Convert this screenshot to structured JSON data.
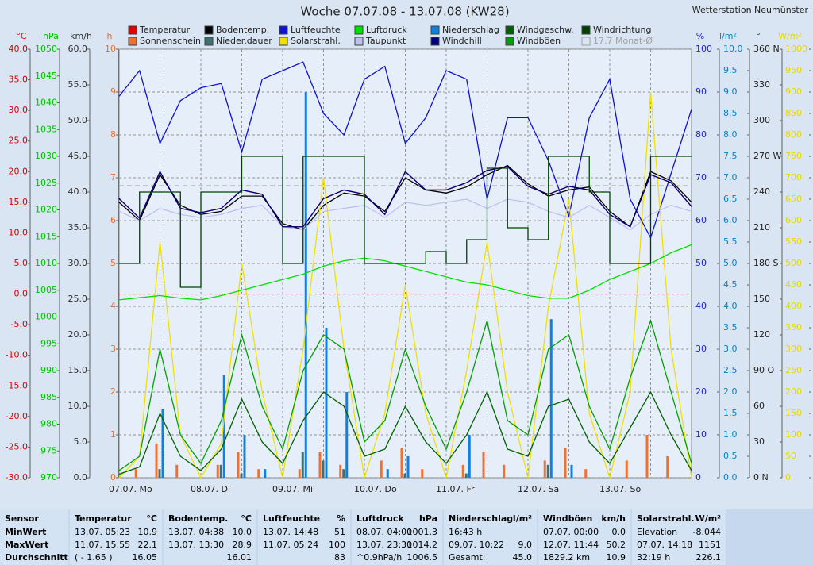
{
  "chart_data": {
    "type": "line",
    "title": "Woche 07.07.08 - 13.07.08 (KW28)",
    "station": "Wetterstation Neumünster",
    "categories": [
      "07.07. Mo",
      null,
      null,
      null,
      "08.07. Di",
      null,
      null,
      null,
      "09.07. Mi",
      null,
      null,
      null,
      "10.07. Do",
      null,
      null,
      null,
      "11.07. Fr",
      null,
      null,
      null,
      "12.07. Sa",
      null,
      null,
      null,
      "13.07. So",
      null,
      null,
      null,
      null
    ],
    "grid": true,
    "axes": [
      {
        "label": "°C",
        "side": "left",
        "color": "#e00000",
        "lim": [
          -30,
          40
        ],
        "ticks": [
          {
            "value": -30,
            "label": "-30.0"
          },
          {
            "value": -25,
            "label": "-25.0"
          },
          {
            "value": -20,
            "label": "-20.0"
          },
          {
            "value": -15,
            "label": "-15.0"
          },
          {
            "value": -10,
            "label": "-10.0"
          },
          {
            "value": -5,
            "label": "-5.0"
          },
          {
            "value": 0,
            "label": "0.0"
          },
          {
            "value": 5,
            "label": "5.0"
          },
          {
            "value": 10,
            "label": "10.0"
          },
          {
            "value": 15,
            "label": "15.0"
          },
          {
            "value": 20,
            "label": "20.0"
          },
          {
            "value": 25,
            "label": "25.0"
          },
          {
            "value": 30,
            "label": "30.0"
          },
          {
            "value": 35,
            "label": "35.0"
          },
          {
            "value": 40,
            "label": "40.0"
          }
        ]
      },
      {
        "label": "hPa",
        "side": "left",
        "color": "#00c000",
        "lim": [
          970,
          1050
        ],
        "ticks": [
          970,
          975,
          980,
          985,
          990,
          995,
          1000,
          1005,
          1010,
          1015,
          1020,
          1025,
          1030,
          1035,
          1040,
          1045,
          1050
        ]
      },
      {
        "label": "km/h",
        "side": "left",
        "color": "#303030",
        "lim": [
          0,
          60
        ],
        "ticks": [
          {
            "value": 0,
            "label": "0.0"
          },
          {
            "value": 5,
            "label": "5.0"
          },
          {
            "value": 10,
            "label": "10.0"
          },
          {
            "value": 15,
            "label": "15.0"
          },
          {
            "value": 20,
            "label": "20.0"
          },
          {
            "value": 25,
            "label": "25.0"
          },
          {
            "value": 30,
            "label": "30.0"
          },
          {
            "value": 35,
            "label": "35.0"
          },
          {
            "value": 40,
            "label": "40.0"
          },
          {
            "value": 45,
            "label": "45.0"
          },
          {
            "value": 50,
            "label": "50.0"
          },
          {
            "value": 55,
            "label": "55.0"
          },
          {
            "value": 60,
            "label": "60.0"
          }
        ]
      },
      {
        "label": "h",
        "side": "left",
        "color": "#e07030",
        "lim": [
          0,
          10
        ],
        "ticks": [
          0,
          1,
          2,
          3,
          4,
          5,
          6,
          7,
          8,
          9,
          10
        ]
      },
      {
        "label": "%",
        "side": "right",
        "color": "#2020d0",
        "lim": [
          0,
          100
        ],
        "ticks": [
          0,
          10,
          20,
          30,
          40,
          50,
          60,
          70,
          80,
          90,
          100
        ]
      },
      {
        "label": "l/m²",
        "side": "right",
        "color": "#1080c0",
        "lim": [
          0,
          10
        ],
        "ticks": [
          {
            "value": 0,
            "label": "0.0"
          },
          {
            "value": 0.5,
            "label": "0.5"
          },
          {
            "value": 1,
            "label": "1.0"
          },
          {
            "value": 1.5,
            "label": "1.5"
          },
          {
            "value": 2,
            "label": "2.0"
          },
          {
            "value": 2.5,
            "label": "2.5"
          },
          {
            "value": 3,
            "label": "3.0"
          },
          {
            "value": 3.5,
            "label": "3.5"
          },
          {
            "value": 4,
            "label": "4.0"
          },
          {
            "value": 4.5,
            "label": "4.5"
          },
          {
            "value": 5,
            "label": "5.0"
          },
          {
            "value": 5.5,
            "label": "5.5"
          },
          {
            "value": 6,
            "label": "6.0"
          },
          {
            "value": 6.5,
            "label": "6.5"
          },
          {
            "value": 7,
            "label": "7.0"
          },
          {
            "value": 7.5,
            "label": "7.5"
          },
          {
            "value": 8,
            "label": "8.0"
          },
          {
            "value": 8.5,
            "label": "8.5"
          },
          {
            "value": 9,
            "label": "9.0"
          },
          {
            "value": 9.5,
            "label": "9.5"
          },
          {
            "value": 10,
            "label": "10.0"
          }
        ]
      },
      {
        "label": "°",
        "side": "right",
        "color": "#202020",
        "lim": [
          0,
          360
        ],
        "ticks": [
          {
            "value": 0,
            "label": "0 N"
          },
          30,
          60,
          {
            "value": 90,
            "label": "90 O"
          },
          120,
          150,
          {
            "value": 180,
            "label": "180 S"
          },
          210,
          240,
          {
            "value": 270,
            "label": "270 W"
          },
          300,
          330,
          {
            "value": 360,
            "label": "360 N"
          }
        ]
      },
      {
        "label": "W/m²",
        "side": "right",
        "color": "#e8d800",
        "lim": [
          0,
          1000
        ],
        "ticks": [
          0,
          50,
          100,
          150,
          200,
          250,
          300,
          350,
          400,
          450,
          500,
          550,
          600,
          650,
          700,
          750,
          800,
          850,
          900,
          950,
          1000
        ]
      }
    ],
    "series": [
      {
        "name": "Temperatur",
        "color": "#e00000",
        "axis": 0,
        "kind": "line",
        "values": [
          15.6,
          12.4,
          20,
          14,
          13.3,
          14,
          17,
          16.3,
          11,
          11,
          15.6,
          17,
          16.3,
          13,
          20,
          17,
          17,
          18.2,
          20.2,
          20.8,
          17.6,
          16.3,
          17.6,
          17,
          13,
          11,
          19.5,
          18.2,
          14.3
        ]
      },
      {
        "name": "Sonnenschein",
        "color": "#f07030",
        "axis": 3,
        "kind": "bar",
        "values": [
          0,
          0.2,
          0.8,
          0.3,
          0,
          0.3,
          0.6,
          0.2,
          0,
          0.2,
          0.6,
          0.3,
          0,
          0.4,
          0.7,
          0.2,
          0,
          0.3,
          0.6,
          0.3,
          0,
          0.4,
          0.7,
          0.2,
          0,
          0.4,
          1,
          0.5,
          0
        ]
      },
      {
        "name": "Bodentemp.",
        "color": "#000000",
        "axis": 0,
        "kind": "line",
        "values": [
          15,
          12,
          19.5,
          14.5,
          13,
          13.5,
          16,
          16,
          11.5,
          10.5,
          14.5,
          16.5,
          16,
          13.5,
          19,
          17,
          16.5,
          17.5,
          19.5,
          21,
          18,
          16,
          17,
          17.5,
          13.5,
          11,
          20,
          18.5,
          15
        ]
      },
      {
        "name": "Nieder.dauer",
        "color": "#407070",
        "axis": 3,
        "kind": "bar",
        "values": [
          0,
          0,
          0.2,
          0,
          0,
          0.3,
          0.1,
          0,
          0,
          0.6,
          0.4,
          0.2,
          0,
          0,
          0.1,
          0,
          0,
          0.1,
          0,
          0,
          0,
          0.3,
          0,
          0,
          0,
          0,
          0,
          0,
          0
        ]
      },
      {
        "name": "Luftfeuchte",
        "color": "#1010d0",
        "axis": 4,
        "kind": "line",
        "values": [
          89,
          95,
          78,
          88,
          91,
          92,
          76,
          93,
          95,
          97,
          85,
          80,
          93,
          96,
          78,
          84,
          95,
          93,
          65,
          84,
          84,
          74,
          61,
          84,
          93,
          65,
          56,
          71,
          86
        ]
      },
      {
        "name": "Solarstrahl.",
        "color": "#f0e000",
        "axis": 7,
        "kind": "line",
        "values": [
          0,
          50,
          550,
          100,
          0,
          80,
          500,
          200,
          0,
          300,
          700,
          300,
          0,
          150,
          450,
          150,
          0,
          250,
          550,
          200,
          0,
          400,
          650,
          150,
          0,
          200,
          900,
          300,
          0
        ]
      },
      {
        "name": "Luftdruck",
        "color": "#00e000",
        "axis": 1,
        "kind": "line",
        "values": [
          1003.2,
          1003.6,
          1004,
          1003.5,
          1003.2,
          1004,
          1005,
          1006,
          1007,
          1008,
          1009.5,
          1010.5,
          1011,
          1010.5,
          1009.5,
          1008.5,
          1007.5,
          1006.5,
          1006,
          1005,
          1004,
          1003.5,
          1003.5,
          1005,
          1007,
          1008.5,
          1010,
          1012,
          1013.5
        ]
      },
      {
        "name": "Taupunkt",
        "color": "#c0c0f0",
        "axis": 0,
        "kind": "line",
        "values": [
          13.5,
          12,
          14,
          13,
          12.5,
          13,
          14,
          14.5,
          11,
          10.5,
          13.5,
          14,
          14.5,
          12.5,
          15,
          14.5,
          15,
          15.5,
          14,
          15.5,
          15,
          13.5,
          12.5,
          14.5,
          12.5,
          10.5,
          13,
          14.5,
          13.5
        ]
      },
      {
        "name": "Niederschlag",
        "color": "#1080e0",
        "axis": 5,
        "kind": "bar",
        "values": [
          0,
          0,
          1.6,
          0,
          0,
          2.4,
          1,
          0.2,
          0,
          9,
          3.5,
          2,
          0,
          0.2,
          0.5,
          0,
          0,
          1,
          0,
          0,
          0,
          3.7,
          0.3,
          0,
          0,
          0,
          0,
          0,
          0
        ]
      },
      {
        "name": "Windchill",
        "color": "#000080",
        "axis": 0,
        "kind": "line",
        "values": [
          15.6,
          12.4,
          20,
          14,
          13.3,
          14,
          17,
          16.3,
          11,
          11,
          15.6,
          17,
          16.3,
          13,
          20,
          17,
          17,
          18.2,
          20.2,
          20.8,
          17.6,
          16.3,
          17.6,
          17,
          13,
          11,
          19.5,
          18.2,
          14.3
        ]
      },
      {
        "name": "Windgeschw.",
        "color": "#006000",
        "axis": 2,
        "kind": "line",
        "values": [
          0.5,
          1.5,
          9,
          3,
          1,
          4,
          11,
          5,
          2,
          8,
          12,
          10,
          3,
          4,
          10,
          5,
          2,
          6,
          12,
          4,
          3,
          10,
          11,
          5,
          2,
          7,
          12,
          6,
          1
        ]
      },
      {
        "name": "Windböen",
        "color": "#00a000",
        "axis": 2,
        "kind": "line",
        "values": [
          1,
          3,
          18,
          6,
          2,
          8,
          20,
          10,
          4,
          15,
          20,
          18,
          5,
          8,
          18,
          10,
          4,
          12,
          22,
          8,
          6,
          18,
          20,
          10,
          4,
          14,
          22,
          12,
          2
        ]
      },
      {
        "name": "Windrichtung",
        "color": "#004000",
        "axis": 6,
        "kind": "step",
        "values": [
          180,
          240,
          240,
          160,
          240,
          240,
          270,
          270,
          180,
          270,
          270,
          270,
          180,
          180,
          180,
          190,
          180,
          200,
          260,
          210,
          200,
          270,
          270,
          240,
          180,
          180,
          270,
          270,
          270
        ]
      }
    ],
    "monthly_average": {
      "label": "17.7 Monat-Ø",
      "value": 17.7,
      "axis": 0,
      "color": "#a0a0a0"
    }
  },
  "stats": {
    "columns": [
      {
        "header": "Sensor",
        "rows": [
          "MinWert",
          "MaxWert",
          "Durchschnitt"
        ]
      },
      {
        "header": "Temperatur",
        "unit": "°C",
        "rows": [
          {
            "left": "13.07.  05:23",
            "right": "10.9"
          },
          {
            "left": "11.07.  15:55",
            "right": "22.1"
          },
          {
            "left": "( - 1.65 )",
            "right": "16.05"
          }
        ]
      },
      {
        "header": "Bodentemp.",
        "unit": "°C",
        "rows": [
          {
            "left": "13.07.  04:38",
            "right": "10.0"
          },
          {
            "left": "13.07.  13:30",
            "right": "28.9"
          },
          {
            "right": "16.01"
          }
        ]
      },
      {
        "header": "Luftfeuchte",
        "unit": "%",
        "rows": [
          {
            "left": "13.07.  14:48",
            "right": "51"
          },
          {
            "left": "11.07.  05:24",
            "right": "100"
          },
          {
            "right": "83"
          }
        ]
      },
      {
        "header": "Luftdruck",
        "unit": "hPa",
        "rows": [
          {
            "left": "08.07.  04:00",
            "right": "1001.3"
          },
          {
            "left": "13.07.  23:30",
            "right": "1014.2"
          },
          {
            "left": "^0.9hPa/h",
            "right": "1006.5"
          }
        ]
      },
      {
        "header": "Niederschlag",
        "unit": "l/m²",
        "rows": [
          {
            "left": "16:43 h"
          },
          {
            "left": "09.07.  10:22",
            "right": "9.0"
          },
          {
            "left": "Gesamt:",
            "right": "45.0"
          }
        ]
      },
      {
        "header": "Windböen",
        "unit": "km/h",
        "rows": [
          {
            "left": "07.07.  00:00",
            "right": "0.0"
          },
          {
            "left": "12.07.  11:44",
            "right": "50.2"
          },
          {
            "left": "1829.2 km",
            "right": "10.9"
          }
        ]
      },
      {
        "header": "Solarstrahl.",
        "unit": "W/m²",
        "rows": [
          {
            "left": "Elevation",
            "right": "-8.044"
          },
          {
            "left": "07.07.  14:18",
            "right": "1151"
          },
          {
            "left": "32:19 h",
            "right": "226.1"
          }
        ]
      }
    ]
  }
}
